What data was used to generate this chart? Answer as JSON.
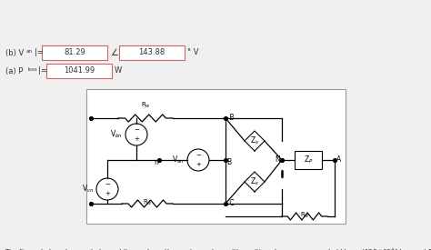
{
  "bg_color": "#f0f0f0",
  "title_text": "The figure below shows a balanced three phase three wire system with positive phase sequence. Let Vᴬᴄ = (120∕⧺60°)VᴭMS and Rᴡ=\n0.6 Ω. If the total load including wire resistance draws 5 kVA at PF = 0.8 lagging and the impedance in each phase is larger than the line\nresistance, find\n(a) the total power lost in the line resistance, and\n(b) Vᴡₙ",
  "answer_a_label": "(a) Pₗ₀ₐₑ|=",
  "answer_a_val": "1041.99",
  "answer_a_unit": "W",
  "answer_b_label": "(b) Vᴡₙ|=",
  "answer_b_val": "81.29",
  "answer_b_angle": "143.88",
  "answer_b_unit": "° V",
  "box_color": "#f5b8b8",
  "circuit_bg": "#ffffff",
  "circuit_border": "#888888"
}
